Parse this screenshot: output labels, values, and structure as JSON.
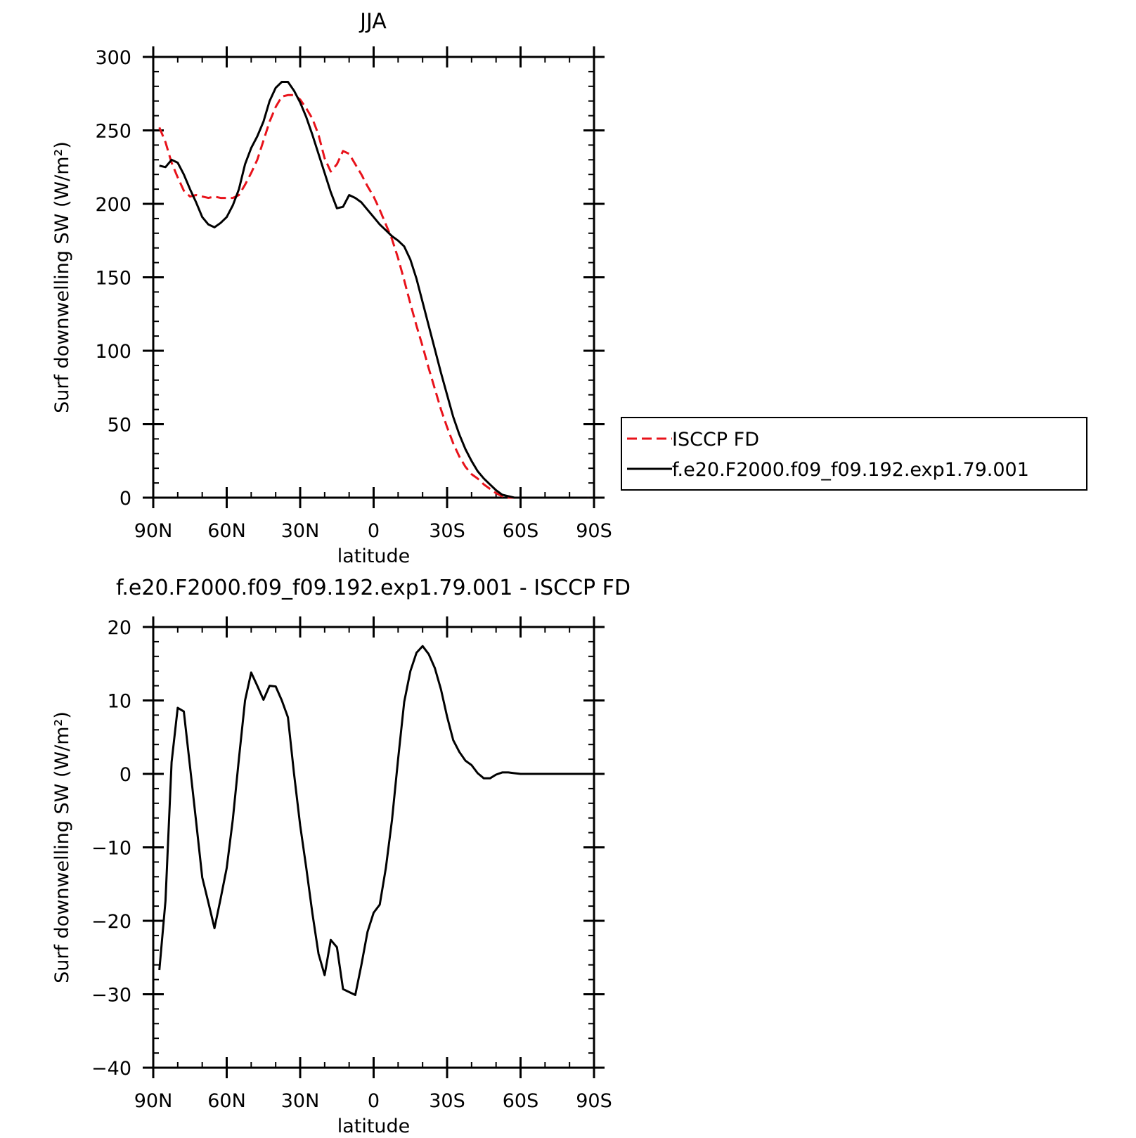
{
  "colors": {
    "model": "#000000",
    "obs": "#e8121a",
    "axis": "#000000",
    "background": "#ffffff"
  },
  "chart_data": [
    {
      "id": "top",
      "type": "line",
      "title": "JJA",
      "xlabel": "latitude",
      "ylabel": "Surf downwelling SW (W/m²)",
      "xlim": [
        90,
        -90
      ],
      "ylim": [
        0,
        300
      ],
      "xticks": [
        {
          "value": 90,
          "label": "90N"
        },
        {
          "value": 60,
          "label": "60N"
        },
        {
          "value": 30,
          "label": "30N"
        },
        {
          "value": 0,
          "label": "0"
        },
        {
          "value": -30,
          "label": "30S"
        },
        {
          "value": -60,
          "label": "60S"
        },
        {
          "value": -90,
          "label": "90S"
        }
      ],
      "yticks": [
        {
          "value": 0,
          "label": "0"
        },
        {
          "value": 50,
          "label": "50"
        },
        {
          "value": 100,
          "label": "100"
        },
        {
          "value": 150,
          "label": "150"
        },
        {
          "value": 200,
          "label": "200"
        },
        {
          "value": 250,
          "label": "250"
        },
        {
          "value": 300,
          "label": "300"
        }
      ],
      "legend": {
        "placement": "right"
      },
      "series": [
        {
          "name": "ISCCP FD",
          "style": "dashed",
          "color": "#e8121a",
          "x": [
            87.5,
            85,
            82.5,
            80,
            77.5,
            75,
            72.5,
            70,
            67.5,
            65,
            62.5,
            60,
            57.5,
            55,
            52.5,
            50,
            47.5,
            45,
            42.5,
            40,
            37.5,
            35,
            32.5,
            30,
            27.5,
            25,
            22.5,
            20,
            17.5,
            15,
            12.5,
            10,
            7.5,
            5,
            2.5,
            0,
            -2.5,
            -5,
            -7.5,
            -10,
            -12.5,
            -15,
            -17.5,
            -20,
            -22.5,
            -25,
            -27.5,
            -30,
            -32.5,
            -35,
            -37.5,
            -40,
            -42.5,
            -45,
            -47.5,
            -50,
            -52.5,
            -55,
            -57.5,
            -60,
            -62.5,
            -65,
            -67.5,
            -70,
            -72.5,
            -75,
            -77.5,
            -80,
            -82.5,
            -85,
            -87.5
          ],
          "y": [
            252,
            242,
            228,
            218,
            209,
            205,
            206,
            205,
            204,
            205,
            204,
            204,
            204,
            206,
            213,
            221,
            230,
            243,
            256,
            266,
            273,
            274,
            274,
            271,
            265,
            258,
            247,
            231,
            222,
            227,
            236,
            234,
            227,
            220,
            212,
            205,
            196,
            186,
            176,
            163,
            148,
            132,
            117,
            103,
            88,
            74,
            60,
            48,
            37,
            28,
            21,
            16,
            13,
            9,
            6,
            3,
            1,
            0,
            0,
            0,
            0,
            0,
            0,
            0,
            0,
            0,
            0,
            0,
            0,
            0,
            0
          ]
        },
        {
          "name": "f.e20.F2000.f09_f09.192.exp1.79.001",
          "style": "solid",
          "color": "#000000",
          "x": [
            87.5,
            85,
            82.5,
            80,
            77.5,
            75,
            72.5,
            70,
            67.5,
            65,
            62.5,
            60,
            57.5,
            55,
            52.5,
            50,
            47.5,
            45,
            42.5,
            40,
            37.5,
            35,
            32.5,
            30,
            27.5,
            25,
            22.5,
            20,
            17.5,
            15,
            12.5,
            10,
            7.5,
            5,
            2.5,
            0,
            -2.5,
            -5,
            -7.5,
            -10,
            -12.5,
            -15,
            -17.5,
            -20,
            -22.5,
            -25,
            -27.5,
            -30,
            -32.5,
            -35,
            -37.5,
            -40,
            -42.5,
            -45,
            -47.5,
            -50,
            -52.5,
            -55,
            -57.5,
            -60,
            -62.5,
            -65,
            -67.5,
            -70,
            -72.5,
            -75,
            -77.5,
            -80,
            -82.5,
            -85,
            -87.5
          ],
          "y": [
            226,
            225,
            230,
            228,
            220,
            210,
            201,
            191,
            186,
            184,
            187,
            191,
            199,
            210,
            227,
            238,
            246,
            256,
            270,
            279,
            283,
            283,
            277,
            269,
            259,
            247,
            234,
            221,
            208,
            197,
            198,
            206,
            204,
            201,
            196,
            191,
            186,
            182,
            178,
            175,
            171,
            162,
            149,
            133,
            117,
            101,
            85,
            70,
            55,
            43,
            33,
            25,
            18,
            13,
            9,
            5,
            2,
            1,
            0,
            0,
            0,
            0,
            0,
            0,
            0,
            0,
            0,
            0,
            0,
            0,
            0
          ]
        }
      ]
    },
    {
      "id": "bottom",
      "type": "line",
      "title": "f.e20.F2000.f09_f09.192.exp1.79.001 - ISCCP FD",
      "xlabel": "latitude",
      "ylabel": "Surf downwelling SW (W/m²)",
      "xlim": [
        90,
        -90
      ],
      "ylim": [
        -40,
        20
      ],
      "xticks": [
        {
          "value": 90,
          "label": "90N"
        },
        {
          "value": 60,
          "label": "60N"
        },
        {
          "value": 30,
          "label": "30N"
        },
        {
          "value": 0,
          "label": "0"
        },
        {
          "value": -30,
          "label": "30S"
        },
        {
          "value": -60,
          "label": "60S"
        },
        {
          "value": -90,
          "label": "90S"
        }
      ],
      "yticks": [
        {
          "value": -40,
          "label": "−40"
        },
        {
          "value": -30,
          "label": "−30"
        },
        {
          "value": -20,
          "label": "−20"
        },
        {
          "value": -10,
          "label": "−10"
        },
        {
          "value": 0,
          "label": "0"
        },
        {
          "value": 10,
          "label": "10"
        },
        {
          "value": 20,
          "label": "20"
        }
      ],
      "series": [
        {
          "style": "solid",
          "color": "#000000",
          "x": [
            87.5,
            85,
            82.5,
            80,
            77.5,
            75,
            72.5,
            70,
            67.5,
            65,
            62.5,
            60,
            57.5,
            55,
            52.5,
            50,
            47.5,
            45,
            42.5,
            40,
            37.5,
            35,
            32.5,
            30,
            27.5,
            25,
            22.5,
            20,
            17.5,
            15,
            12.5,
            10,
            7.5,
            5,
            2.5,
            0,
            -2.5,
            -5,
            -7.5,
            -10,
            -12.5,
            -15,
            -17.5,
            -20,
            -22.5,
            -25,
            -27.5,
            -30,
            -32.5,
            -35,
            -37.5,
            -40,
            -42.5,
            -45,
            -47.5,
            -50,
            -52.5,
            -55,
            -57.5,
            -60,
            -62.5,
            -65,
            -67.5,
            -70,
            -72.5,
            -75,
            -77.5,
            -80,
            -82.5,
            -85,
            -87.5
          ],
          "y": [
            -26.7,
            -17.3,
            1.6,
            9.0,
            8.5,
            1.0,
            -6.5,
            -14.1,
            -17.5,
            -21.0,
            -17.0,
            -12.8,
            -6.2,
            2.1,
            10.0,
            13.8,
            12.0,
            10.1,
            12.0,
            11.9,
            10.0,
            7.7,
            0.0,
            -7.0,
            -12.8,
            -19.0,
            -24.5,
            -27.4,
            -22.6,
            -23.6,
            -29.3,
            -29.7,
            -30.1,
            -26.0,
            -21.5,
            -18.9,
            -17.8,
            -12.8,
            -6.3,
            2.0,
            9.8,
            14.0,
            16.5,
            17.4,
            16.3,
            14.4,
            11.5,
            7.8,
            4.6,
            3.0,
            1.8,
            1.2,
            0.1,
            -0.6,
            -0.6,
            -0.1,
            0.2,
            0.2,
            0.1,
            0.0,
            0.0,
            0.0,
            0.0,
            0.0,
            0.0,
            0.0,
            0.0,
            0.0,
            0.0,
            0.0,
            0.0
          ]
        }
      ]
    }
  ]
}
